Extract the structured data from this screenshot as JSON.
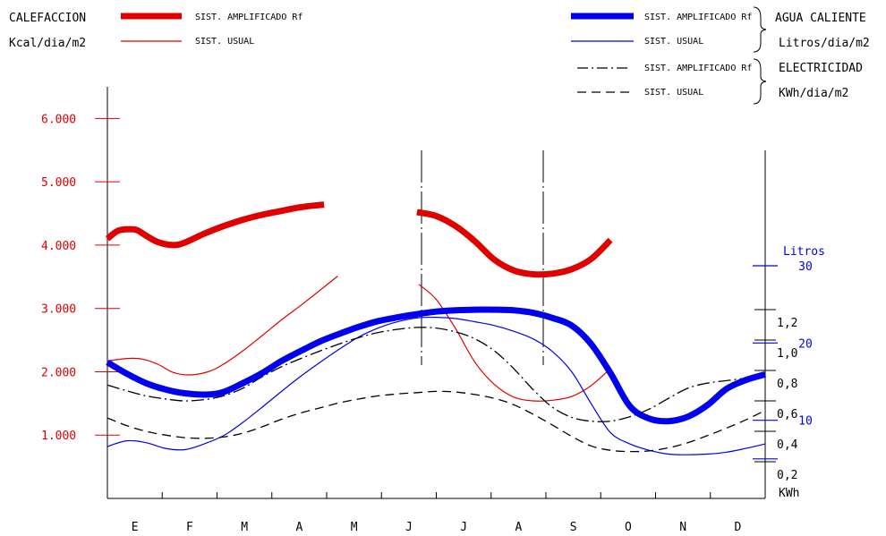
{
  "headers": {
    "calefaccion": "CALEFACCION",
    "kcal_unit": "Kcal/dia/m2",
    "agua_caliente": "AGUA CALIENTE",
    "litros_unit": "Litros/dia/m2",
    "electricidad": "ELECTRICIDAD",
    "kwh_unit": "KWh/dia/m2"
  },
  "legend": {
    "heat_amp": "SIST. AMPLIFICADO Rf",
    "heat_usual": "SIST. USUAL",
    "water_amp": "SIST. AMPLIFICADO Rf",
    "water_usual": "SIST. USUAL",
    "elec_amp": "SIST. AMPLIFICADO Rf",
    "elec_usual": "SIST. USUAL"
  },
  "colors": {
    "heat": "#e00000",
    "water": "#0000ee",
    "elec": "#000000"
  },
  "chart_data": {
    "type": "line",
    "x": [
      "E",
      "F",
      "M",
      "A",
      "M",
      "J",
      "J",
      "A",
      "S",
      "O",
      "N",
      "D"
    ],
    "left_axis": {
      "ylim": [
        0,
        6500
      ],
      "ticks": [
        1000,
        2000,
        3000,
        4000,
        5000,
        6000
      ],
      "tick_labels": [
        "1.000",
        "2.000",
        "3.000",
        "4.000",
        "5.000",
        "6.000"
      ]
    },
    "right_axis_litros": {
      "title": "Litros",
      "ylim": [
        0,
        35
      ],
      "ticks": [
        10,
        20,
        30
      ],
      "tick_labels": [
        "10",
        "20",
        "30"
      ]
    },
    "right_axis_kwh": {
      "title": "KWh",
      "ylim": [
        0.2,
        1.4
      ],
      "ticks": [
        0.2,
        0.4,
        0.6,
        0.8,
        1.0,
        1.2
      ],
      "tick_labels": [
        "0,2",
        "0,4",
        "0,6",
        "0,8",
        "1,0",
        "1,2"
      ]
    },
    "series": [
      {
        "name": "SIST. AMPLIFICADO Rf",
        "group": "CALEFACCION",
        "axis": "left",
        "style": "thick",
        "segments": [
          [
            [
              0.0,
              4100
            ],
            [
              0.25,
              4220
            ],
            [
              0.5,
              4250
            ],
            [
              0.75,
              4240
            ],
            [
              1.0,
              4150
            ],
            [
              1.3,
              4050
            ],
            [
              1.7,
              4000
            ],
            [
              2.0,
              4040
            ],
            [
              2.5,
              4180
            ],
            [
              3.0,
              4300
            ],
            [
              3.5,
              4400
            ],
            [
              4.0,
              4480
            ],
            [
              4.5,
              4540
            ],
            [
              5.0,
              4600
            ],
            [
              5.6,
              4640
            ]
          ],
          [
            [
              8.0,
              4520
            ],
            [
              8.5,
              4460
            ],
            [
              9.0,
              4300
            ],
            [
              9.5,
              4060
            ],
            [
              10.0,
              3770
            ],
            [
              10.5,
              3600
            ],
            [
              11.0,
              3540
            ],
            [
              11.5,
              3550
            ],
            [
              12.0,
              3620
            ],
            [
              12.5,
              3780
            ],
            [
              13.0,
              4080
            ]
          ]
        ]
      },
      {
        "name": "SIST. USUAL",
        "group": "CALEFACCION",
        "axis": "left",
        "style": "thin",
        "segments": [
          [
            [
              0.0,
              2170
            ],
            [
              0.5,
              2210
            ],
            [
              0.9,
              2200
            ],
            [
              1.3,
              2120
            ],
            [
              1.7,
              1990
            ],
            [
              2.1,
              1950
            ],
            [
              2.6,
              2000
            ],
            [
              3.0,
              2120
            ],
            [
              3.5,
              2330
            ],
            [
              4.0,
              2570
            ],
            [
              4.5,
              2820
            ],
            [
              5.0,
              3050
            ],
            [
              5.5,
              3290
            ],
            [
              5.95,
              3510
            ]
          ],
          [
            [
              8.05,
              3380
            ],
            [
              8.5,
              3140
            ],
            [
              9.0,
              2680
            ],
            [
              9.5,
              2150
            ],
            [
              10.0,
              1800
            ],
            [
              10.5,
              1600
            ],
            [
              11.0,
              1540
            ],
            [
              11.5,
              1550
            ],
            [
              12.0,
              1610
            ],
            [
              12.5,
              1780
            ],
            [
              13.0,
              2050
            ]
          ]
        ]
      },
      {
        "name": "SIST. AMPLIFICADO Rf",
        "group": "AGUA CALIENTE",
        "axis": "left",
        "style": "thick",
        "segments": [
          [
            [
              0.0,
              2150
            ],
            [
              0.5,
              1970
            ],
            [
              1.0,
              1820
            ],
            [
              1.5,
              1720
            ],
            [
              2.0,
              1660
            ],
            [
              2.6,
              1640
            ],
            [
              3.0,
              1680
            ],
            [
              3.5,
              1820
            ],
            [
              4.0,
              1980
            ],
            [
              4.5,
              2170
            ],
            [
              5.0,
              2330
            ],
            [
              5.5,
              2480
            ],
            [
              6.0,
              2600
            ],
            [
              6.5,
              2710
            ],
            [
              7.0,
              2800
            ],
            [
              7.5,
              2860
            ],
            [
              8.0,
              2910
            ],
            [
              8.5,
              2950
            ],
            [
              9.0,
              2970
            ],
            [
              9.5,
              2980
            ],
            [
              10.0,
              2980
            ],
            [
              10.5,
              2970
            ],
            [
              11.0,
              2930
            ],
            [
              11.5,
              2850
            ],
            [
              12.0,
              2730
            ],
            [
              12.5,
              2440
            ],
            [
              13.0,
              1980
            ],
            [
              13.5,
              1460
            ],
            [
              14.0,
              1260
            ],
            [
              14.5,
              1220
            ],
            [
              15.0,
              1290
            ],
            [
              15.5,
              1470
            ],
            [
              16.0,
              1730
            ],
            [
              16.5,
              1870
            ],
            [
              17.0,
              1960
            ]
          ]
        ]
      },
      {
        "name": "SIST. USUAL",
        "group": "AGUA CALIENTE",
        "axis": "left",
        "style": "thin",
        "segments": [
          [
            [
              0.0,
              820
            ],
            [
              0.5,
              910
            ],
            [
              1.0,
              880
            ],
            [
              1.5,
              790
            ],
            [
              2.0,
              770
            ],
            [
              2.5,
              860
            ],
            [
              3.0,
              990
            ],
            [
              3.5,
              1200
            ],
            [
              4.0,
              1440
            ],
            [
              4.5,
              1690
            ],
            [
              5.0,
              1930
            ],
            [
              5.5,
              2150
            ],
            [
              6.0,
              2360
            ],
            [
              6.5,
              2550
            ],
            [
              7.0,
              2690
            ],
            [
              7.5,
              2790
            ],
            [
              8.0,
              2850
            ],
            [
              8.5,
              2860
            ],
            [
              9.0,
              2840
            ],
            [
              9.5,
              2790
            ],
            [
              10.0,
              2730
            ],
            [
              10.5,
              2640
            ],
            [
              11.0,
              2520
            ],
            [
              11.5,
              2320
            ],
            [
              12.0,
              2000
            ],
            [
              12.5,
              1500
            ],
            [
              13.0,
              1040
            ],
            [
              13.5,
              860
            ],
            [
              14.0,
              760
            ],
            [
              14.5,
              700
            ],
            [
              15.0,
              690
            ],
            [
              15.5,
              700
            ],
            [
              16.0,
              730
            ],
            [
              16.5,
              790
            ],
            [
              17.0,
              860
            ]
          ]
        ]
      },
      {
        "name": "SIST. AMPLIFICADO Rf",
        "group": "ELECTRICIDAD",
        "axis": "left",
        "style": "dashdot",
        "segments": [
          [
            [
              0.0,
              1790
            ],
            [
              0.5,
              1700
            ],
            [
              1.0,
              1620
            ],
            [
              1.5,
              1570
            ],
            [
              2.0,
              1540
            ],
            [
              2.5,
              1560
            ],
            [
              3.0,
              1620
            ],
            [
              3.5,
              1740
            ],
            [
              4.0,
              1920
            ],
            [
              4.5,
              2080
            ],
            [
              5.0,
              2210
            ],
            [
              5.5,
              2330
            ],
            [
              6.0,
              2440
            ],
            [
              6.5,
              2540
            ],
            [
              7.0,
              2620
            ],
            [
              7.5,
              2670
            ],
            [
              8.0,
              2700
            ],
            [
              8.5,
              2690
            ],
            [
              9.0,
              2630
            ],
            [
              9.5,
              2520
            ],
            [
              10.0,
              2330
            ],
            [
              10.5,
              2050
            ],
            [
              11.0,
              1720
            ],
            [
              11.5,
              1440
            ],
            [
              12.0,
              1280
            ],
            [
              12.5,
              1220
            ],
            [
              13.0,
              1220
            ],
            [
              13.5,
              1290
            ],
            [
              14.0,
              1410
            ],
            [
              14.5,
              1580
            ],
            [
              15.0,
              1740
            ],
            [
              15.5,
              1820
            ],
            [
              16.0,
              1860
            ],
            [
              16.5,
              1900
            ],
            [
              17.0,
              1960
            ]
          ]
        ]
      },
      {
        "name": "SIST. USUAL",
        "group": "ELECTRICIDAD",
        "axis": "left",
        "style": "dashed",
        "segments": [
          [
            [
              0.0,
              1270
            ],
            [
              0.5,
              1150
            ],
            [
              1.0,
              1060
            ],
            [
              1.5,
              1000
            ],
            [
              2.0,
              960
            ],
            [
              2.5,
              950
            ],
            [
              3.0,
              970
            ],
            [
              3.5,
              1030
            ],
            [
              4.0,
              1130
            ],
            [
              4.5,
              1250
            ],
            [
              5.0,
              1350
            ],
            [
              5.5,
              1430
            ],
            [
              6.0,
              1510
            ],
            [
              6.5,
              1570
            ],
            [
              7.0,
              1620
            ],
            [
              7.5,
              1650
            ],
            [
              8.0,
              1670
            ],
            [
              8.5,
              1690
            ],
            [
              9.0,
              1680
            ],
            [
              9.5,
              1640
            ],
            [
              10.0,
              1580
            ],
            [
              10.5,
              1480
            ],
            [
              11.0,
              1330
            ],
            [
              11.5,
              1160
            ],
            [
              12.0,
              980
            ],
            [
              12.5,
              830
            ],
            [
              13.0,
              760
            ],
            [
              13.5,
              740
            ],
            [
              14.0,
              750
            ],
            [
              14.5,
              800
            ],
            [
              15.0,
              880
            ],
            [
              15.5,
              990
            ],
            [
              16.0,
              1110
            ],
            [
              16.5,
              1240
            ],
            [
              17.0,
              1390
            ]
          ]
        ]
      }
    ]
  }
}
